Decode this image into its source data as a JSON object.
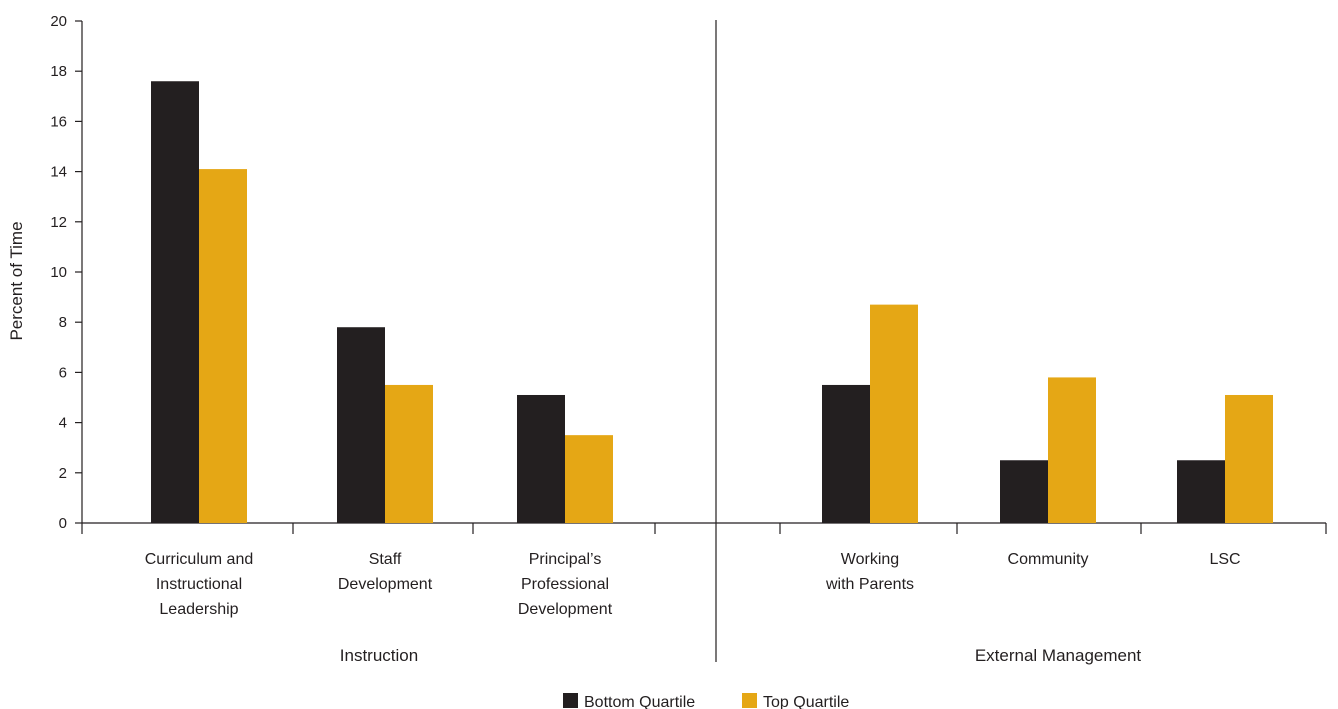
{
  "chart_data": {
    "type": "bar",
    "ylabel": "Percent of Time",
    "ylim": [
      0,
      20
    ],
    "yticks": [
      0,
      2,
      4,
      6,
      8,
      10,
      12,
      14,
      16,
      18,
      20
    ],
    "grid": false,
    "legend_position": "bottom-center",
    "colors": {
      "Bottom Quartile": "#231f20",
      "Top Quartile": "#e5a715"
    },
    "groups": [
      {
        "label": "Instruction",
        "categories": [
          {
            "lines": [
              "Curriculum and",
              "Instructional",
              "Leadership"
            ]
          },
          {
            "lines": [
              "Staff",
              "Development"
            ]
          },
          {
            "lines": [
              "Principal’s",
              "Professional",
              "Development"
            ]
          }
        ]
      },
      {
        "label": "External Management",
        "categories": [
          {
            "lines": [
              "Working",
              "with Parents"
            ]
          },
          {
            "lines": [
              "Community"
            ]
          },
          {
            "lines": [
              "LSC"
            ]
          }
        ]
      }
    ],
    "series": [
      {
        "name": "Bottom Quartile",
        "values": [
          17.6,
          7.8,
          5.1,
          5.5,
          2.5,
          2.5
        ]
      },
      {
        "name": "Top Quartile",
        "values": [
          14.1,
          5.5,
          3.5,
          8.7,
          5.8,
          5.1
        ]
      }
    ]
  }
}
